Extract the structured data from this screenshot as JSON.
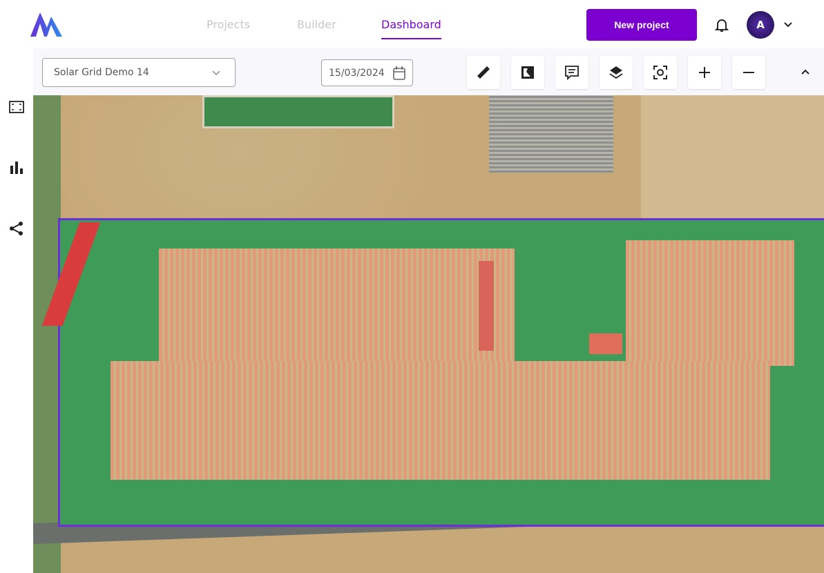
{
  "header": {
    "nav": [
      {
        "label": "Projects",
        "active": false
      },
      {
        "label": "Builder",
        "active": false
      },
      {
        "label": "Dashboard",
        "active": true
      }
    ],
    "new_project_label": "New project",
    "avatar_initial": "A",
    "accent": "#7b00d0"
  },
  "sidebar": {
    "icons": [
      "area-select-icon",
      "bar-chart-icon",
      "share-icon"
    ]
  },
  "toolbar": {
    "project_select": "Solar Grid Demo 14",
    "date": "15/03/2024",
    "tools": [
      "ruler-icon",
      "map-compare-icon",
      "comment-icon",
      "layers-icon",
      "focus-icon",
      "zoom-in-icon",
      "zoom-out-icon"
    ]
  },
  "map": {
    "zone_border_color": "#6a2fd6"
  }
}
